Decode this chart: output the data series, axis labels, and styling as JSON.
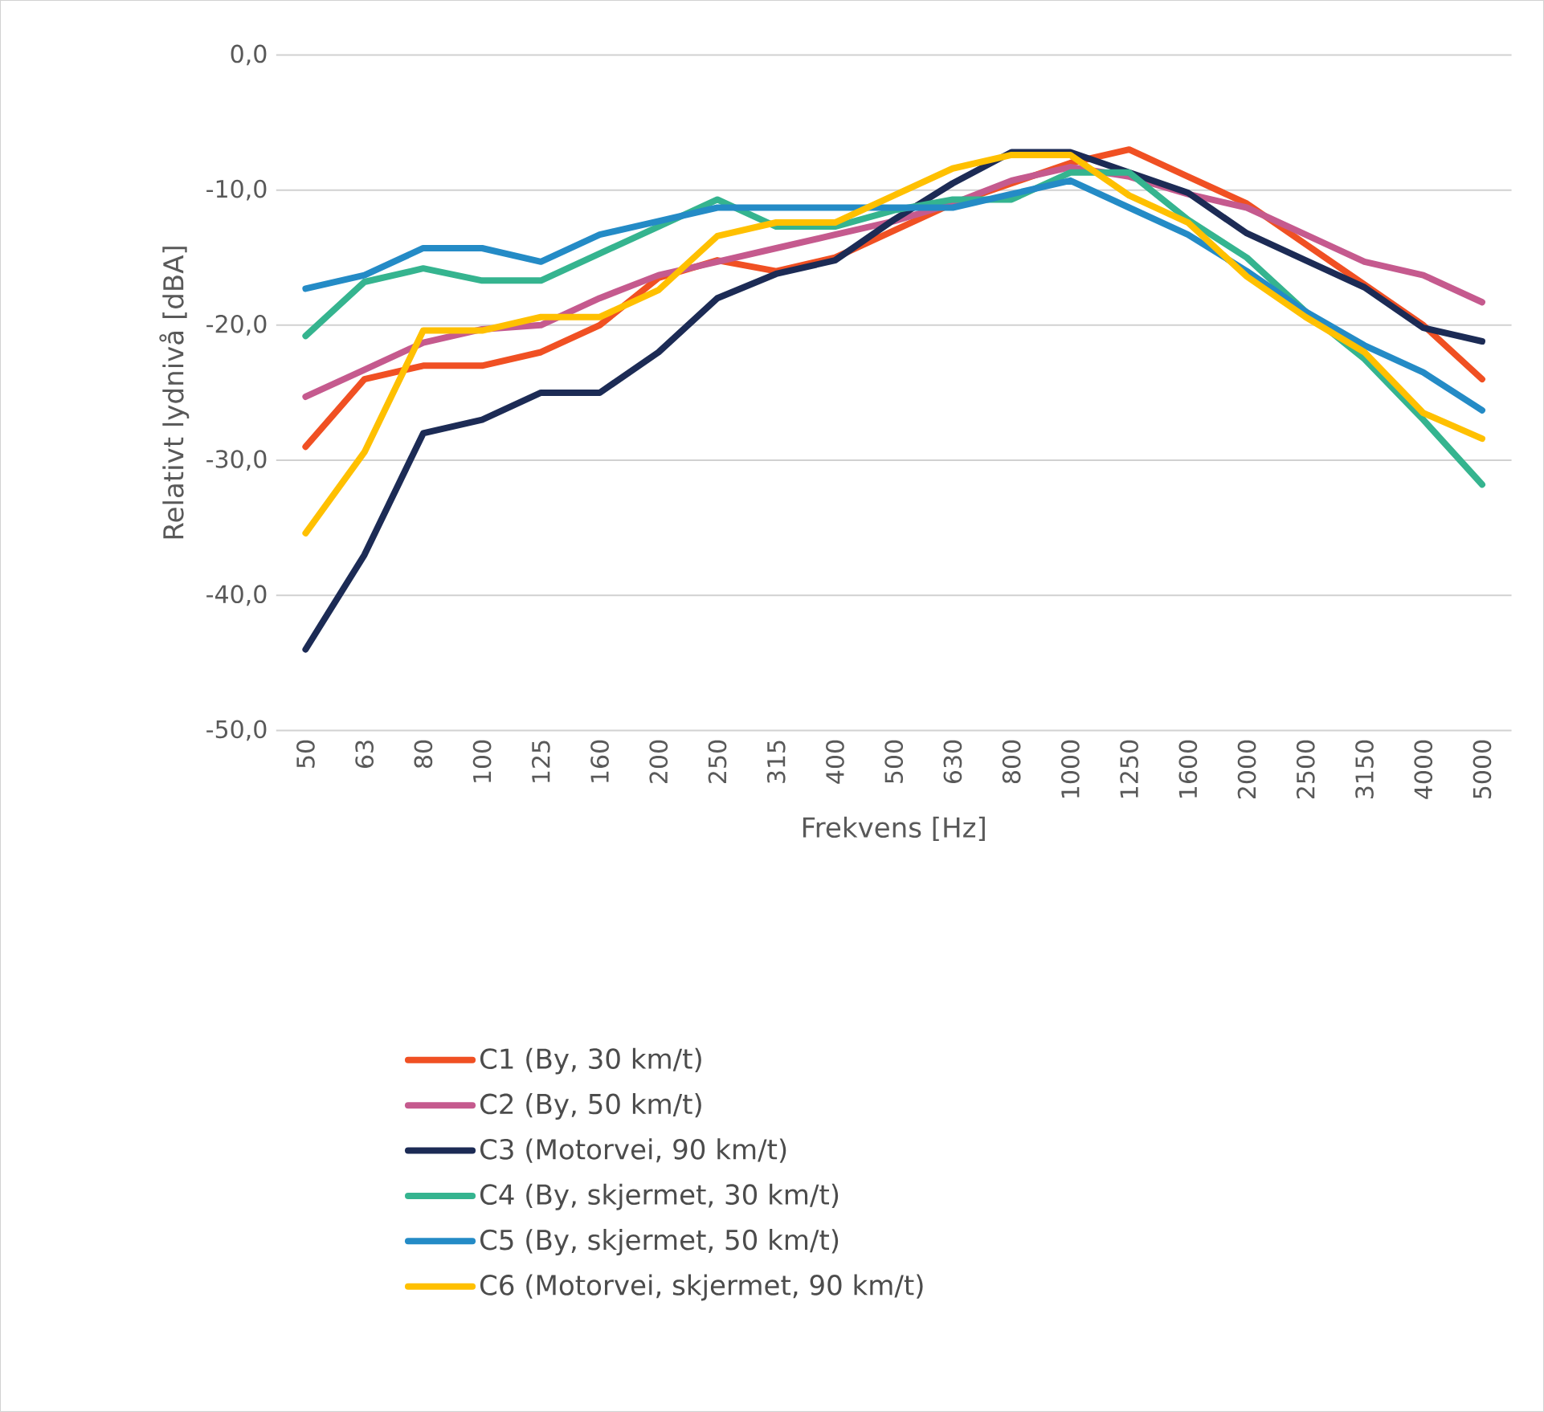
{
  "chart_data": {
    "type": "line",
    "xlabel": "Frekvens [Hz]",
    "ylabel": "Relativt lydnivå [dBA]",
    "categories": [
      "50",
      "63",
      "80",
      "100",
      "125",
      "160",
      "200",
      "250",
      "315",
      "400",
      "500",
      "630",
      "800",
      "1000",
      "1250",
      "1600",
      "2000",
      "2500",
      "3150",
      "4000",
      "5000"
    ],
    "ylim": [
      -50,
      0
    ],
    "yticks": [
      {
        "value": -50,
        "label": "-50,0"
      },
      {
        "value": -40,
        "label": "-40,0"
      },
      {
        "value": -30,
        "label": "-30,0"
      },
      {
        "value": -20,
        "label": "-20,0"
      },
      {
        "value": -10,
        "label": "-10,0"
      },
      {
        "value": 0,
        "label": "0,0"
      }
    ],
    "grid": "y",
    "legend": "bottom",
    "marker": "none",
    "line_style": "solid",
    "series": [
      {
        "name": "C1 (By, 30 km/t)",
        "color": "#f05023",
        "values": [
          -29,
          -24,
          -23,
          -23,
          -22,
          -20,
          -16.5,
          -15.2,
          -16,
          -15,
          -13,
          -11,
          -9.5,
          -8,
          -7,
          -9,
          -11,
          -14,
          -17,
          -20,
          -24
        ]
      },
      {
        "name": "C2 (By, 50 km/t)",
        "color": "#c55a8e",
        "values": [
          -25.3,
          -23.3,
          -21.3,
          -20.3,
          -20,
          -18,
          -16.3,
          -15.3,
          -14.3,
          -13.3,
          -12.3,
          -11,
          -9.3,
          -8.3,
          -9,
          -10.3,
          -11.3,
          -13.3,
          -15.3,
          -16.3,
          -18.3
        ]
      },
      {
        "name": "C3 (Motorvei, 90 km/t)",
        "color": "#1c2b55",
        "values": [
          -44,
          -37,
          -28,
          -27,
          -25,
          -25,
          -22,
          -18,
          -16.2,
          -15.2,
          -12.2,
          -9.5,
          -7.2,
          -7.2,
          -8.7,
          -10.2,
          -13.2,
          -15.2,
          -17.2,
          -20.2,
          -21.2
        ]
      },
      {
        "name": "C4 (By, skjermet, 30 km/t)",
        "color": "#35b48f",
        "values": [
          -20.8,
          -16.8,
          -15.8,
          -16.7,
          -16.7,
          -14.7,
          -12.7,
          -10.7,
          -12.7,
          -12.7,
          -11.5,
          -10.7,
          -10.7,
          -8.7,
          -8.7,
          -12.2,
          -15,
          -19,
          -22.5,
          -27,
          -31.8
        ]
      },
      {
        "name": "C5 (By, skjermet, 50 km/t)",
        "color": "#248bc6",
        "values": [
          -17.3,
          -16.3,
          -14.3,
          -14.3,
          -15.3,
          -13.3,
          -12.3,
          -11.3,
          -11.3,
          -11.3,
          -11.3,
          -11.3,
          -10.3,
          -9.3,
          -11.3,
          -13.3,
          -16,
          -19,
          -21.5,
          -23.5,
          -26.3
        ]
      },
      {
        "name": "C6 (Motorvei, skjermet, 90 km/t)",
        "color": "#ffc000",
        "values": [
          -35.4,
          -29.4,
          -20.4,
          -20.4,
          -19.4,
          -19.4,
          -17.4,
          -13.4,
          -12.4,
          -12.4,
          -10.4,
          -8.4,
          -7.4,
          -7.4,
          -10.4,
          -12.4,
          -16.4,
          -19.4,
          -22,
          -26.5,
          -28.4
        ]
      }
    ]
  }
}
